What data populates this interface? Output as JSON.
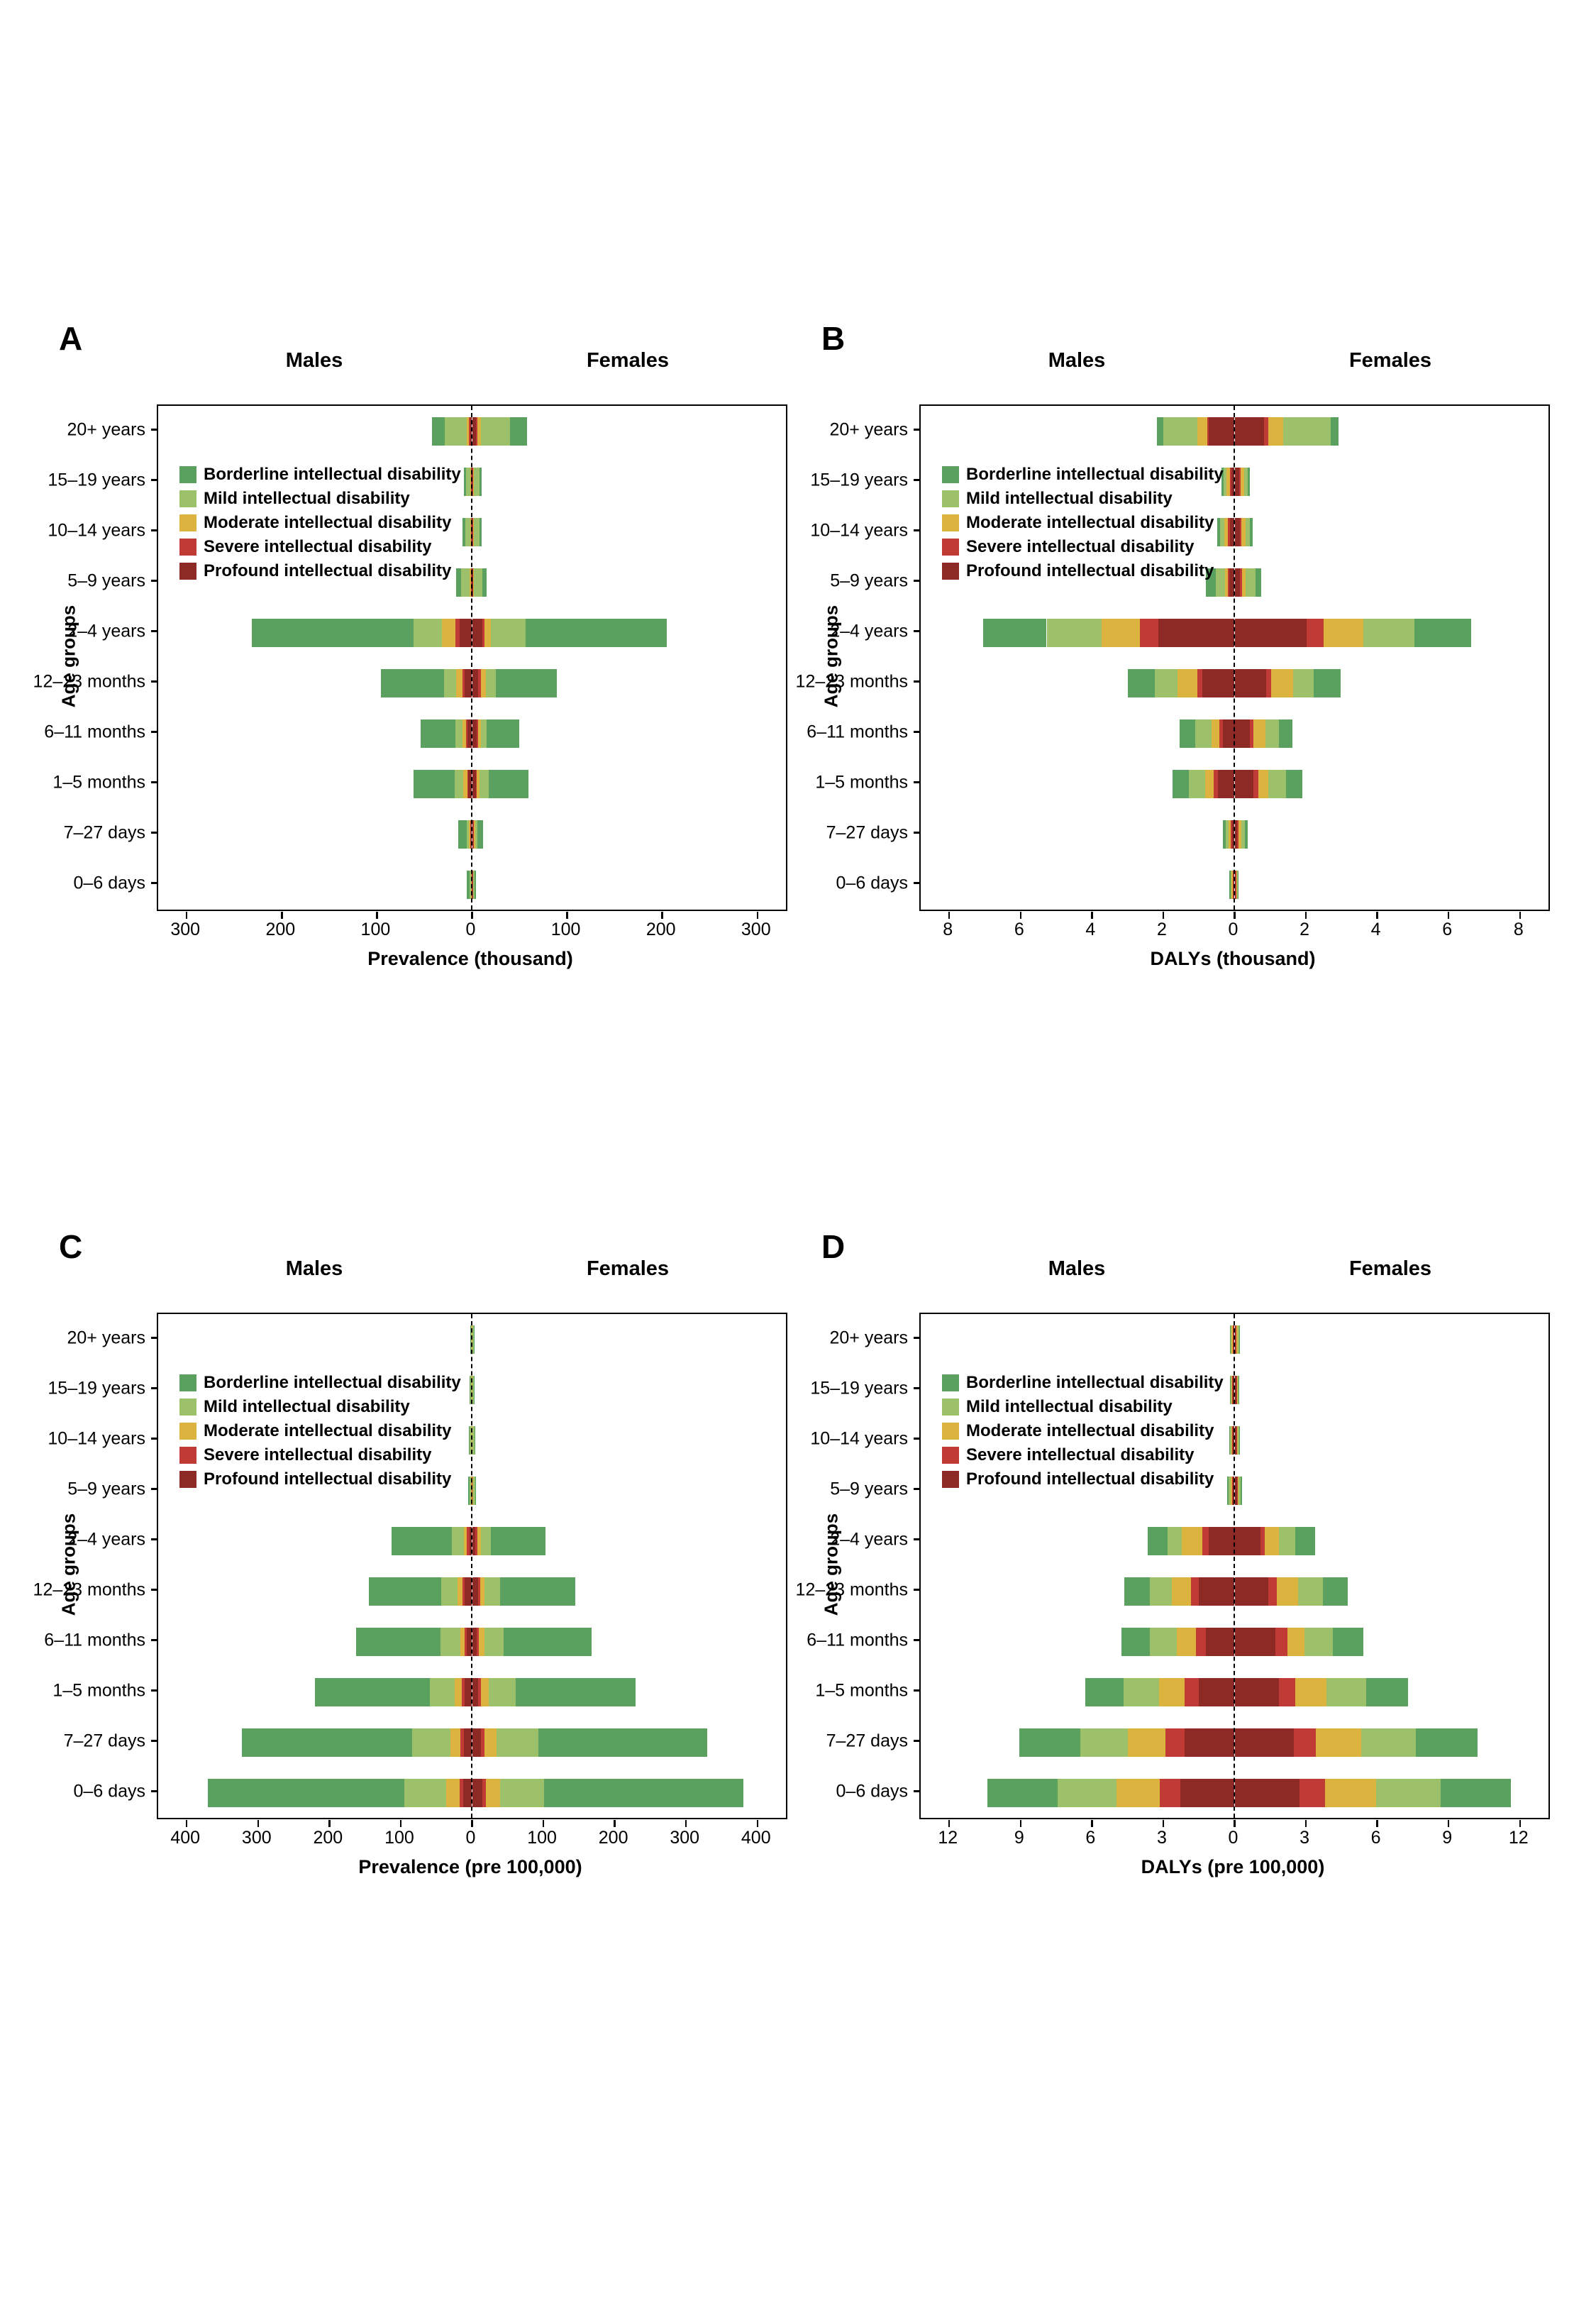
{
  "legend": {
    "items": [
      {
        "key": "borderline",
        "label": "Borderline intellectual disability",
        "color": "#5aa05f"
      },
      {
        "key": "mild",
        "label": "Mild intellectual disability",
        "color": "#9dc16b"
      },
      {
        "key": "moderate",
        "label": "Moderate intellectual disability",
        "color": "#ddb340"
      },
      {
        "key": "severe",
        "label": "Severe intellectual disability",
        "color": "#c03b36"
      },
      {
        "key": "profound",
        "label": "Profound intellectual disability",
        "color": "#8e2a25"
      }
    ]
  },
  "severity_order_from_center": [
    "profound",
    "severe",
    "moderate",
    "mild",
    "borderline"
  ],
  "chart_data": [
    {
      "panel": "A",
      "type": "bar",
      "subtype": "stacked-population-pyramid",
      "males_label": "Males",
      "females_label": "Females",
      "ylabel": "Age groups",
      "xlabel": "Prevalence (thousand)",
      "xticks": [
        -300,
        -200,
        -100,
        0,
        100,
        200,
        300
      ],
      "xmax": 330,
      "rows": [
        {
          "age": "20+ years",
          "male": {
            "borderline": 13.7,
            "mild": 23.0,
            "moderate": 2.8,
            "severe": 1.2,
            "profound": 1.8
          },
          "female": {
            "borderline": 17.5,
            "mild": 31.0,
            "moderate": 3.5,
            "severe": 1.5,
            "profound": 4.2
          }
        },
        {
          "age": "15–19 years",
          "male": {
            "borderline": 2.2,
            "mild": 4.5,
            "moderate": 0.8,
            "severe": 0.5,
            "profound": 0.5
          },
          "female": {
            "borderline": 2.0,
            "mild": 6.0,
            "moderate": 0.8,
            "severe": 0.5,
            "profound": 0.5
          }
        },
        {
          "age": "10–14 years",
          "male": {
            "borderline": 3.0,
            "mild": 5.0,
            "moderate": 0.9,
            "severe": 0.5,
            "profound": 0.4
          },
          "female": {
            "borderline": 2.5,
            "mild": 6.0,
            "moderate": 0.8,
            "severe": 0.5,
            "profound": 0.5
          }
        },
        {
          "age": "5–9 years",
          "male": {
            "borderline": 5.0,
            "mild": 9.5,
            "moderate": 1.0,
            "severe": 0.8,
            "profound": 0.5
          },
          "female": {
            "borderline": 4.5,
            "mild": 8.8,
            "moderate": 0.8,
            "severe": 0.5,
            "profound": 0.8
          }
        },
        {
          "age": "2–4 years",
          "male": {
            "borderline": 170,
            "mild": 30.0,
            "moderate": 14.4,
            "severe": 3.8,
            "profound": 13.4
          },
          "female": {
            "borderline": 148,
            "mild": 37.0,
            "moderate": 6.2,
            "severe": 2.9,
            "profound": 10.5
          }
        },
        {
          "age": "12–23 months",
          "male": {
            "borderline": 67.0,
            "mild": 12.0,
            "moderate": 7.0,
            "severe": 2.4,
            "profound": 7.7
          },
          "female": {
            "borderline": 64.6,
            "mild": 10.5,
            "moderate": 5.3,
            "severe": 2.4,
            "profound": 6.7
          }
        },
        {
          "age": "6–11 months",
          "male": {
            "borderline": 36.8,
            "mild": 7.2,
            "moderate": 3.3,
            "severe": 1.9,
            "profound": 4.8
          },
          "female": {
            "borderline": 34.4,
            "mild": 6.2,
            "moderate": 2.9,
            "severe": 1.4,
            "profound": 4.8
          }
        },
        {
          "age": "1–5 months",
          "male": {
            "borderline": 43.0,
            "mild": 9.6,
            "moderate": 3.8,
            "severe": 1.4,
            "profound": 3.8
          },
          "female": {
            "borderline": 42.0,
            "mild": 9.1,
            "moderate": 2.9,
            "severe": 1.4,
            "profound": 3.8
          }
        },
        {
          "age": "7–27 days",
          "male": {
            "borderline": 9.1,
            "mild": 2.4,
            "moderate": 1.0,
            "severe": 1.0,
            "profound": 1.0
          },
          "female": {
            "borderline": 5.7,
            "mild": 2.9,
            "moderate": 1.0,
            "severe": 1.0,
            "profound": 1.0
          }
        },
        {
          "age": "0–6 days",
          "male": {
            "borderline": 2.6,
            "mild": 1.3,
            "moderate": 0.6,
            "severe": 0.3,
            "profound": 0.5
          },
          "female": {
            "borderline": 2.0,
            "mild": 1.0,
            "moderate": 0.5,
            "severe": 0.3,
            "profound": 0.5
          }
        }
      ]
    },
    {
      "panel": "B",
      "type": "bar",
      "subtype": "stacked-population-pyramid",
      "males_label": "Males",
      "females_label": "Females",
      "ylabel": "Age groups",
      "xlabel": "DALYs (thousand)",
      "xticks": [
        -8,
        -6,
        -4,
        -2,
        0,
        2,
        4,
        6,
        8
      ],
      "xmax": 8.8,
      "rows": [
        {
          "age": "20+ years",
          "male": {
            "borderline": 0.17,
            "mild": 0.96,
            "moderate": 0.27,
            "severe": 0.05,
            "profound": 0.72
          },
          "female": {
            "borderline": 0.23,
            "mild": 1.33,
            "moderate": 0.41,
            "severe": 0.12,
            "profound": 0.83
          }
        },
        {
          "age": "15–19 years",
          "male": {
            "borderline": 0.06,
            "mild": 0.08,
            "moderate": 0.09,
            "severe": 0.04,
            "profound": 0.09
          },
          "female": {
            "borderline": 0.07,
            "mild": 0.1,
            "moderate": 0.1,
            "severe": 0.04,
            "profound": 0.12
          }
        },
        {
          "age": "10–14 years",
          "male": {
            "borderline": 0.08,
            "mild": 0.11,
            "moderate": 0.11,
            "severe": 0.05,
            "profound": 0.13
          },
          "female": {
            "borderline": 0.08,
            "mild": 0.12,
            "moderate": 0.11,
            "severe": 0.05,
            "profound": 0.14
          }
        },
        {
          "age": "5–9 years",
          "male": {
            "borderline": 0.28,
            "mild": 0.25,
            "moderate": 0.08,
            "severe": 0.05,
            "profound": 0.14
          },
          "female": {
            "borderline": 0.17,
            "mild": 0.28,
            "moderate": 0.1,
            "severe": 0.05,
            "profound": 0.15
          }
        },
        {
          "age": "2–4 years",
          "male": {
            "borderline": 1.78,
            "mild": 1.54,
            "moderate": 1.08,
            "severe": 0.51,
            "profound": 2.14
          },
          "female": {
            "borderline": 1.58,
            "mild": 1.44,
            "moderate": 1.12,
            "severe": 0.47,
            "profound": 2.02
          }
        },
        {
          "age": "12–23 months",
          "male": {
            "borderline": 0.76,
            "mild": 0.64,
            "moderate": 0.55,
            "severe": 0.15,
            "profound": 0.9
          },
          "female": {
            "borderline": 0.76,
            "mild": 0.57,
            "moderate": 0.61,
            "severe": 0.14,
            "profound": 0.89
          }
        },
        {
          "age": "6–11 months",
          "male": {
            "borderline": 0.45,
            "mild": 0.45,
            "moderate": 0.22,
            "severe": 0.1,
            "profound": 0.33
          },
          "female": {
            "borderline": 0.38,
            "mild": 0.38,
            "moderate": 0.34,
            "severe": 0.1,
            "profound": 0.43
          }
        },
        {
          "age": "1–5 months",
          "male": {
            "borderline": 0.45,
            "mild": 0.47,
            "moderate": 0.23,
            "severe": 0.13,
            "profound": 0.46
          },
          "female": {
            "borderline": 0.45,
            "mild": 0.51,
            "moderate": 0.28,
            "severe": 0.13,
            "profound": 0.53
          }
        },
        {
          "age": "7–27 days",
          "male": {
            "borderline": 0.09,
            "mild": 0.08,
            "moderate": 0.06,
            "severe": 0.04,
            "profound": 0.06
          },
          "female": {
            "borderline": 0.08,
            "mild": 0.1,
            "moderate": 0.08,
            "severe": 0.04,
            "profound": 0.07
          }
        },
        {
          "age": "0–6 days",
          "male": {
            "borderline": 0.03,
            "mild": 0.03,
            "moderate": 0.03,
            "severe": 0.02,
            "profound": 0.03
          },
          "female": {
            "borderline": 0.02,
            "mild": 0.02,
            "moderate": 0.02,
            "severe": 0.02,
            "profound": 0.03
          }
        }
      ]
    },
    {
      "panel": "C",
      "type": "bar",
      "subtype": "stacked-population-pyramid",
      "males_label": "Males",
      "females_label": "Females",
      "ylabel": "Age groups",
      "xlabel": "Prevalence (pre 100,000)",
      "xticks": [
        -400,
        -300,
        -200,
        -100,
        0,
        100,
        200,
        300,
        400
      ],
      "xmax": 440,
      "rows": [
        {
          "age": "20+ years",
          "male": {
            "borderline": 0.5,
            "mild": 1.5,
            "moderate": 0.3,
            "severe": 0.2,
            "profound": 0.2
          },
          "female": {
            "borderline": 0.8,
            "mild": 1.8,
            "moderate": 0.3,
            "severe": 0.2,
            "profound": 0.2
          }
        },
        {
          "age": "15–19 years",
          "male": {
            "borderline": 0.8,
            "mild": 1.8,
            "moderate": 0.3,
            "severe": 0.2,
            "profound": 0.2
          },
          "female": {
            "borderline": 1.0,
            "mild": 2.0,
            "moderate": 0.3,
            "severe": 0.2,
            "profound": 0.2
          }
        },
        {
          "age": "10–14 years",
          "male": {
            "borderline": 1.0,
            "mild": 2.2,
            "moderate": 0.4,
            "severe": 0.2,
            "profound": 0.3
          },
          "female": {
            "borderline": 1.2,
            "mild": 2.4,
            "moderate": 0.4,
            "severe": 0.2,
            "profound": 0.3
          }
        },
        {
          "age": "5–9 years",
          "male": {
            "borderline": 1.3,
            "mild": 2.5,
            "moderate": 0.5,
            "severe": 0.3,
            "profound": 0.4
          },
          "female": {
            "borderline": 1.5,
            "mild": 2.8,
            "moderate": 0.5,
            "severe": 0.3,
            "profound": 0.4
          }
        },
        {
          "age": "2–4 years",
          "male": {
            "borderline": 84,
            "mild": 17,
            "moderate": 4.4,
            "severe": 3.2,
            "profound": 3.8
          },
          "female": {
            "borderline": 76,
            "mild": 14.6,
            "moderate": 4.4,
            "severe": 3.2,
            "profound": 4.4
          }
        },
        {
          "age": "12–23 months",
          "male": {
            "borderline": 102,
            "mild": 22,
            "moderate": 7.6,
            "severe": 3.2,
            "profound": 10.0
          },
          "female": {
            "borderline": 105,
            "mild": 21.6,
            "moderate": 6.3,
            "severe": 2.5,
            "profound": 8.9
          }
        },
        {
          "age": "6–11 months",
          "male": {
            "borderline": 118,
            "mild": 28,
            "moderate": 6.3,
            "severe": 3.2,
            "profound": 7.0
          },
          "female": {
            "borderline": 123,
            "mild": 27,
            "moderate": 7.6,
            "severe": 3.2,
            "profound": 6.3
          }
        },
        {
          "age": "1–5 months",
          "male": {
            "borderline": 161,
            "mild": 35,
            "moderate": 9.5,
            "severe": 4.4,
            "profound": 10.0
          },
          "female": {
            "borderline": 168,
            "mild": 38,
            "moderate": 10.8,
            "severe": 3.8,
            "profound": 8.9
          }
        },
        {
          "age": "7–27 days",
          "male": {
            "borderline": 238,
            "mild": 54,
            "moderate": 14,
            "severe": 5.0,
            "profound": 11.4
          },
          "female": {
            "borderline": 237,
            "mild": 58,
            "moderate": 17,
            "severe": 5.0,
            "profound": 12.7
          }
        },
        {
          "age": "0–6 days",
          "male": {
            "borderline": 276,
            "mild": 58,
            "moderate": 19,
            "severe": 5.0,
            "profound": 12.7
          },
          "female": {
            "borderline": 279,
            "mild": 62,
            "moderate": 20,
            "severe": 5.0,
            "profound": 14.0
          }
        }
      ]
    },
    {
      "panel": "D",
      "type": "bar",
      "subtype": "stacked-population-pyramid",
      "males_label": "Males",
      "females_label": "Females",
      "ylabel": "Age groups",
      "xlabel": "DALYs (pre 100,000)",
      "xticks": [
        -12,
        -9,
        -6,
        -3,
        0,
        3,
        6,
        9,
        12
      ],
      "xmax": 13.2,
      "rows": [
        {
          "age": "20+ years",
          "male": {
            "borderline": 0.02,
            "mild": 0.05,
            "moderate": 0.05,
            "severe": 0.03,
            "profound": 0.05
          },
          "female": {
            "borderline": 0.02,
            "mild": 0.05,
            "moderate": 0.05,
            "severe": 0.03,
            "profound": 0.05
          }
        },
        {
          "age": "15–19 years",
          "male": {
            "borderline": 0.02,
            "mild": 0.04,
            "moderate": 0.04,
            "severe": 0.03,
            "profound": 0.06
          },
          "female": {
            "borderline": 0.02,
            "mild": 0.04,
            "moderate": 0.04,
            "severe": 0.03,
            "profound": 0.06
          }
        },
        {
          "age": "10–14 years",
          "male": {
            "borderline": 0.03,
            "mild": 0.06,
            "moderate": 0.04,
            "severe": 0.03,
            "profound": 0.06
          },
          "female": {
            "borderline": 0.03,
            "mild": 0.05,
            "moderate": 0.04,
            "severe": 0.03,
            "profound": 0.07
          }
        },
        {
          "age": "5–9 years",
          "male": {
            "borderline": 0.05,
            "mild": 0.1,
            "moderate": 0.04,
            "severe": 0.03,
            "profound": 0.08
          },
          "female": {
            "borderline": 0.05,
            "mild": 0.1,
            "moderate": 0.04,
            "severe": 0.03,
            "profound": 0.09
          }
        },
        {
          "age": "2–4 years",
          "male": {
            "borderline": 0.82,
            "mild": 0.61,
            "moderate": 0.86,
            "severe": 0.25,
            "profound": 1.1
          },
          "female": {
            "borderline": 0.84,
            "mild": 0.69,
            "moderate": 0.57,
            "severe": 0.19,
            "profound": 1.09
          }
        },
        {
          "age": "12–23 months",
          "male": {
            "borderline": 1.09,
            "mild": 0.91,
            "moderate": 0.82,
            "severe": 0.3,
            "profound": 1.52
          },
          "female": {
            "borderline": 1.05,
            "mild": 1.05,
            "moderate": 0.9,
            "severe": 0.34,
            "profound": 1.43
          }
        },
        {
          "age": "6–11 months",
          "male": {
            "borderline": 1.2,
            "mild": 1.14,
            "moderate": 0.8,
            "severe": 0.42,
            "profound": 1.2
          },
          "female": {
            "borderline": 1.3,
            "mild": 1.18,
            "moderate": 0.72,
            "severe": 0.51,
            "profound": 1.71
          }
        },
        {
          "age": "1–5 months",
          "male": {
            "borderline": 1.62,
            "mild": 1.49,
            "moderate": 1.09,
            "severe": 0.57,
            "profound": 1.52
          },
          "female": {
            "borderline": 1.75,
            "mild": 1.66,
            "moderate": 1.33,
            "severe": 0.69,
            "profound": 1.85
          }
        },
        {
          "age": "7–27 days",
          "male": {
            "borderline": 2.57,
            "mild": 2.0,
            "moderate": 1.58,
            "severe": 0.8,
            "profound": 2.1
          },
          "female": {
            "borderline": 2.6,
            "mild": 2.29,
            "moderate": 1.9,
            "severe": 0.95,
            "profound": 2.48
          }
        },
        {
          "age": "0–6 days",
          "male": {
            "borderline": 2.95,
            "mild": 2.48,
            "moderate": 1.81,
            "severe": 0.86,
            "profound": 2.29
          },
          "female": {
            "borderline": 2.95,
            "mild": 2.7,
            "moderate": 2.15,
            "severe": 1.09,
            "profound": 2.72
          }
        }
      ]
    }
  ]
}
